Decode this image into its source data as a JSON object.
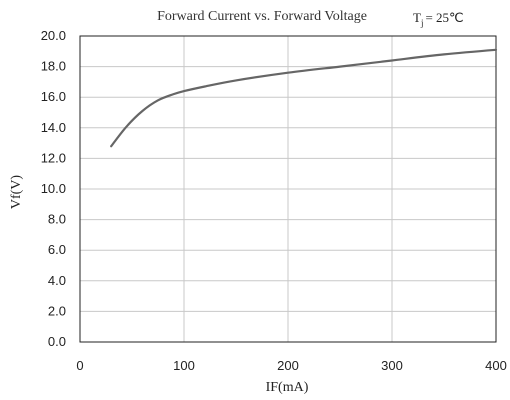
{
  "chart_data": {
    "type": "line",
    "title": "Forward Current vs. Forward Voltage",
    "condition": {
      "symbol": "T",
      "subscript": "j",
      "value": "= 25℃"
    },
    "xlabel": "IF(mA)",
    "ylabel": "Vf(V)",
    "xlim": [
      0,
      400
    ],
    "ylim": [
      0,
      20
    ],
    "xticks": [
      0,
      100,
      200,
      300,
      400
    ],
    "yticks": [
      0,
      2,
      4,
      6,
      8,
      10,
      12,
      14,
      16,
      18,
      20
    ],
    "xtick_labels": [
      "0",
      "100",
      "200",
      "300",
      "400"
    ],
    "ytick_labels": [
      "0.0",
      "2.0",
      "4.0",
      "6.0",
      "8.0",
      "10.0",
      "12.0",
      "14.0",
      "16.0",
      "18.0",
      "20.0"
    ],
    "grid": true,
    "series": [
      {
        "color": "#666666",
        "x": [
          30,
          45,
          60,
          75,
          90,
          100,
          120,
          150,
          200,
          250,
          300,
          350,
          400
        ],
        "y": [
          12.8,
          14.1,
          15.1,
          15.8,
          16.2,
          16.4,
          16.7,
          17.1,
          17.6,
          18.0,
          18.4,
          18.8,
          19.1
        ]
      }
    ]
  }
}
